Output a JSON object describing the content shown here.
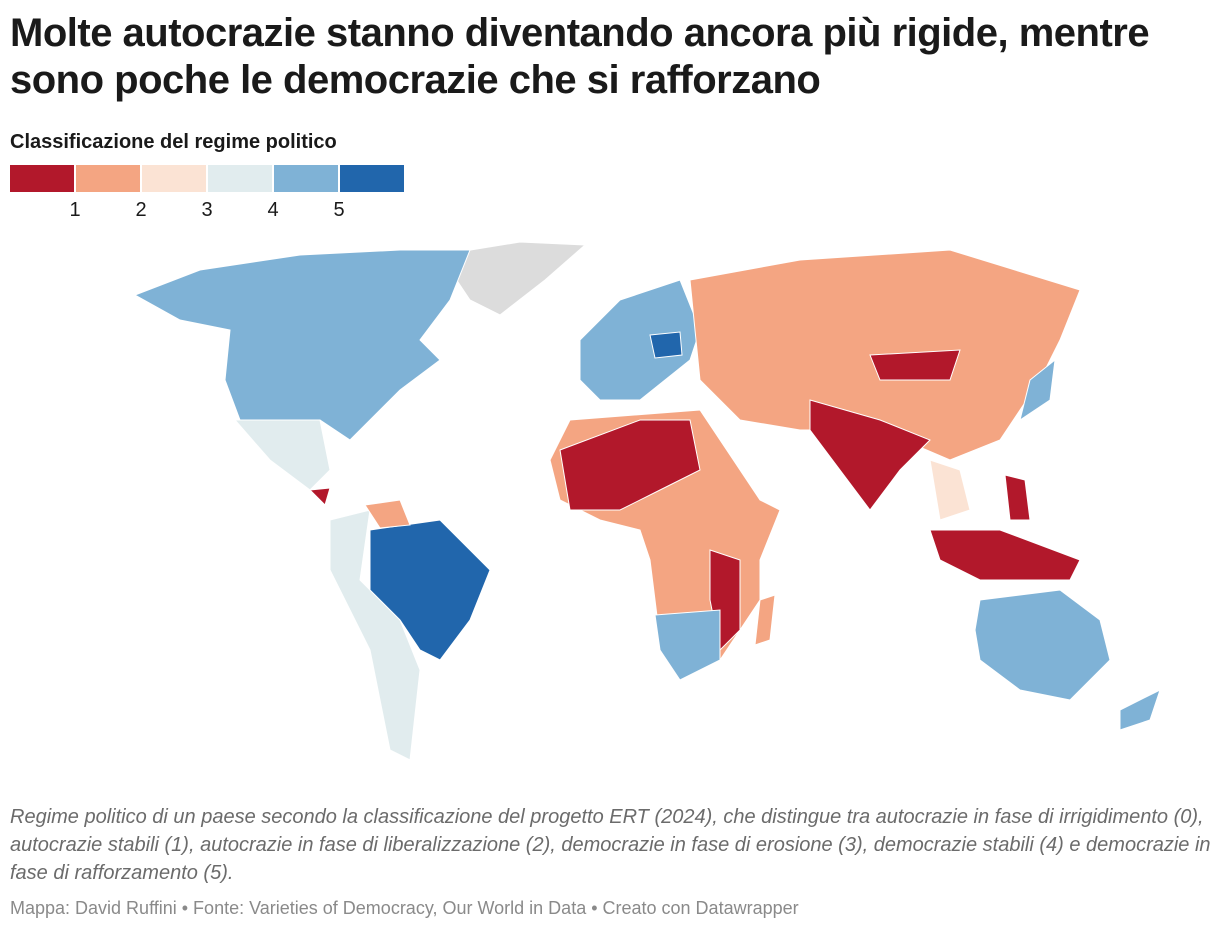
{
  "title": "Molte autocrazie stanno diventando ancora più rigide, mentre sono poche le democrazie che si rafforzano",
  "legend": {
    "title": "Classificazione del regime politico",
    "colors": [
      "#b2182b",
      "#f4a582",
      "#fbe3d4",
      "#e1ecee",
      "#7fb2d6",
      "#2166ac"
    ],
    "labels": [
      1,
      2,
      3,
      4,
      5
    ]
  },
  "description": "Regime politico di un paese secondo la classificazione del progetto ERT (2024), che distingue tra autocrazie in fase di irrigidimento (0), autocrazie stabili (1), autocrazie in fase di liberalizzazione (2), democrazie in fase di erosione (3), democrazie stabili (4) e democrazie in fase di rafforzamento (5).",
  "source": "Mappa: David Ruffini • Fonte: Varieties of Democracy, Our World in Data • Creato con Datawrapper"
}
